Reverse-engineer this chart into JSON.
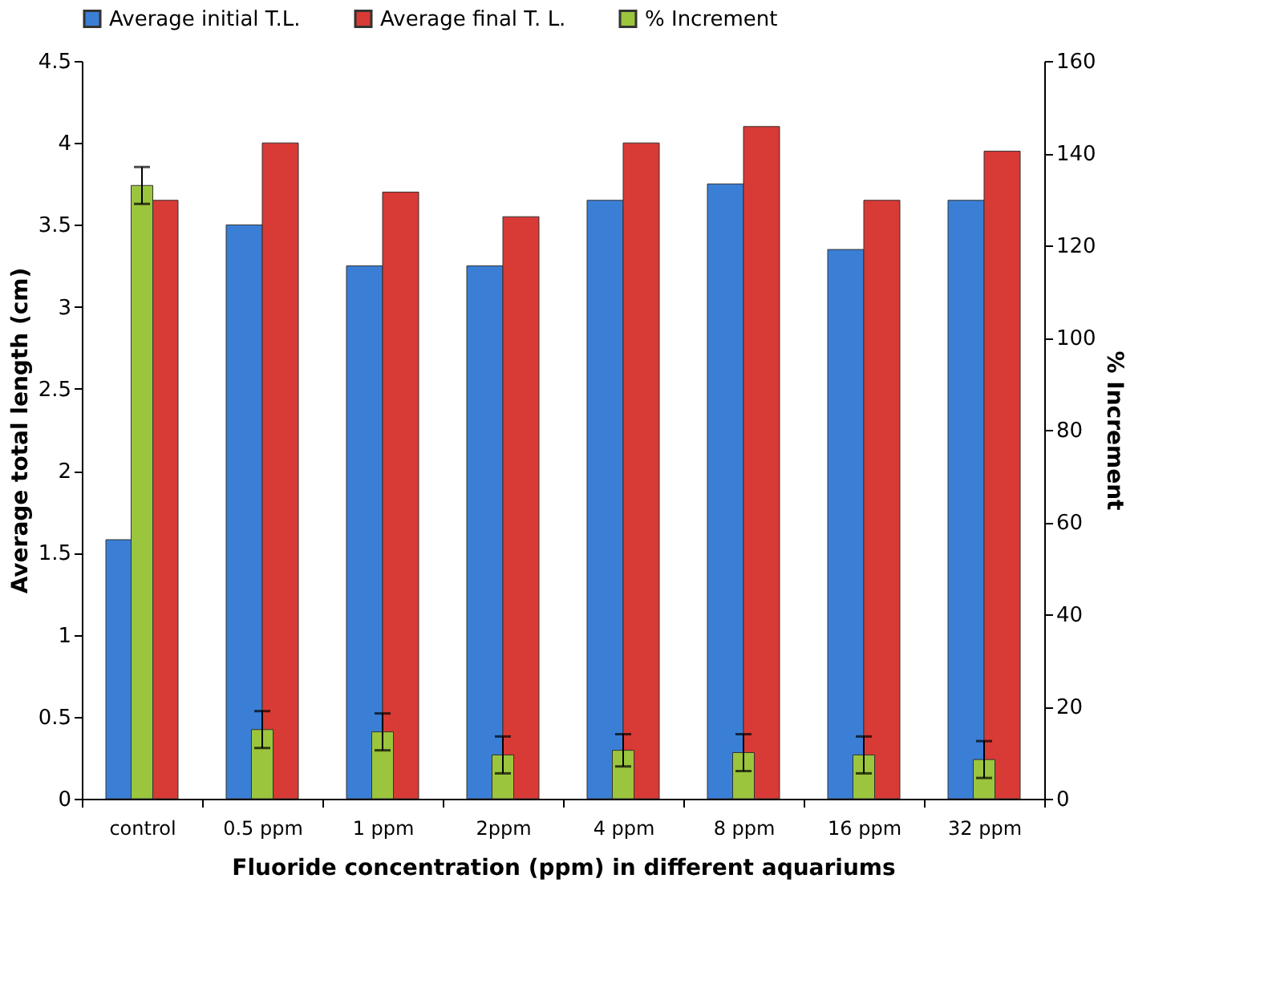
{
  "chart_data": {
    "type": "bar",
    "categories": [
      "control",
      "0.5 ppm",
      "1 ppm",
      "2ppm",
      "4 ppm",
      "8 ppm",
      "16 ppm",
      "32 ppm"
    ],
    "series": [
      {
        "name": "Average initial T.L.",
        "color": "#3a7fd5",
        "values": [
          1.58,
          3.5,
          3.25,
          3.25,
          3.65,
          3.75,
          3.35,
          3.65
        ]
      },
      {
        "name": "Average final T. L.",
        "color": "#d83a35",
        "values": [
          3.65,
          4.0,
          3.7,
          3.55,
          4.0,
          4.1,
          3.65,
          3.95
        ]
      },
      {
        "name": "% Increment",
        "color": "#9bc53d",
        "axis": "y2",
        "values": [
          133,
          15,
          14.5,
          9.5,
          10.5,
          10,
          9.5,
          8.5
        ],
        "errors": [
          4,
          4,
          4,
          4,
          3.5,
          4,
          4,
          4
        ]
      }
    ],
    "xlabel": "Fluoride concentration (ppm) in different aquariums",
    "ylabel": "Average total length (cm)",
    "y2label": "% Increment",
    "ylim": [
      0,
      4.5
    ],
    "yticks": [
      0,
      0.5,
      1,
      1.5,
      2,
      2.5,
      3,
      3.5,
      4,
      4.5
    ],
    "y2lim": [
      0,
      160
    ],
    "y2ticks": [
      0,
      20,
      40,
      60,
      80,
      100,
      120,
      140,
      160
    ],
    "grid": false,
    "legend": "top"
  }
}
